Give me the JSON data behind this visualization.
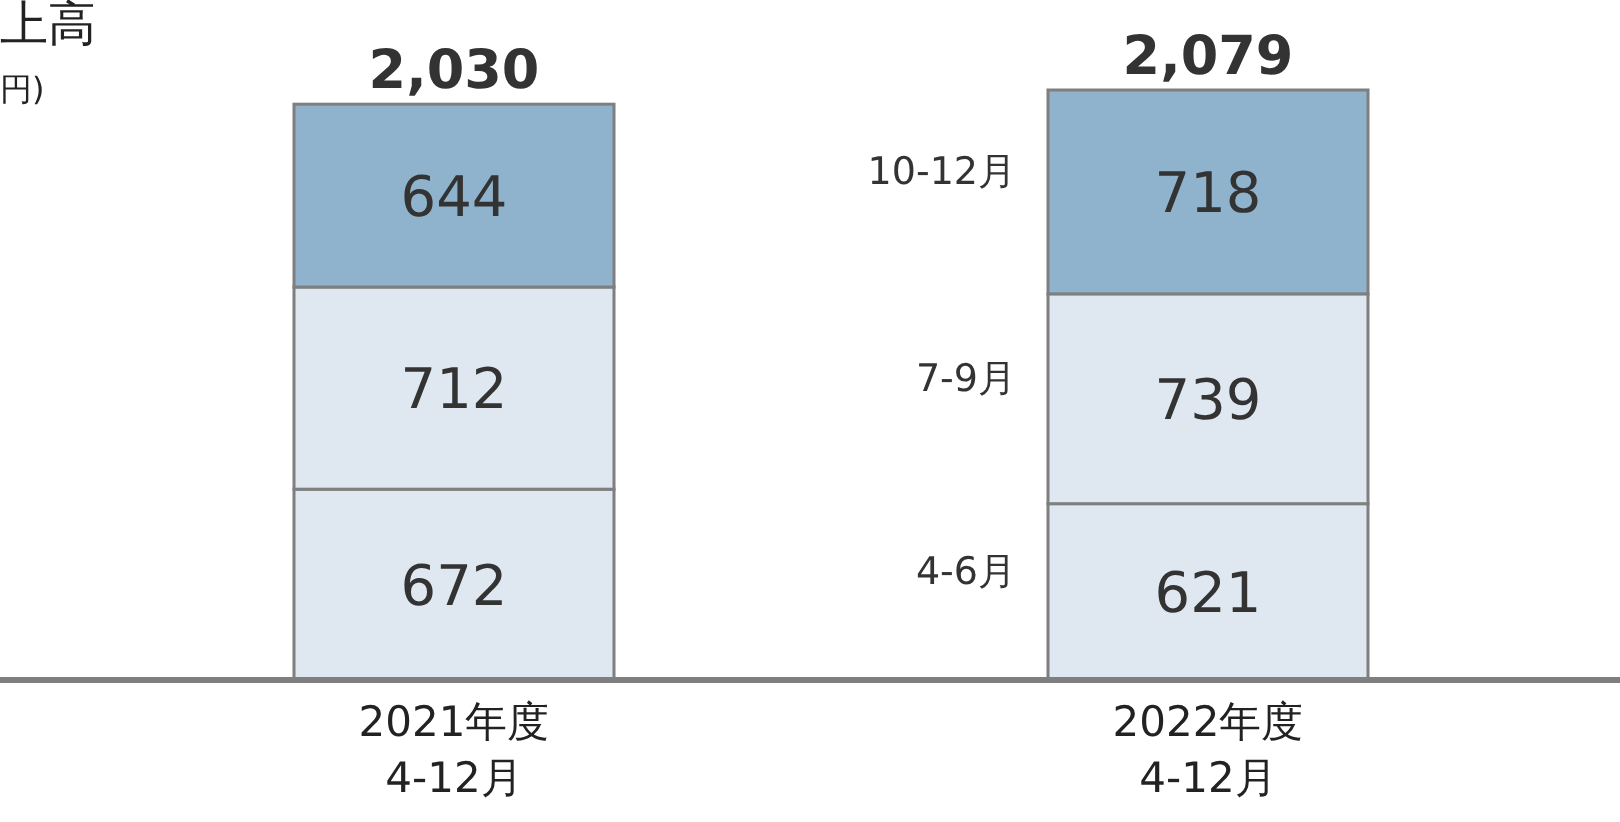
{
  "chart_data": {
    "type": "bar",
    "title": "上高",
    "subtitle": "円)",
    "stacked": true,
    "data_labels": true,
    "categories": [
      "2021年度\n4-12月",
      "2022年度\n4-12月"
    ],
    "series": [
      {
        "name": "4-6月",
        "color": "#dfe7f0",
        "values": [
          672,
          621
        ]
      },
      {
        "name": "7-9月",
        "color": "#dfe7f0",
        "values": [
          712,
          739
        ]
      },
      {
        "name": "10-12月",
        "color": "#8fb3cc",
        "values": [
          644,
          718
        ]
      }
    ],
    "totals": [
      "2,030",
      "2,079"
    ]
  }
}
